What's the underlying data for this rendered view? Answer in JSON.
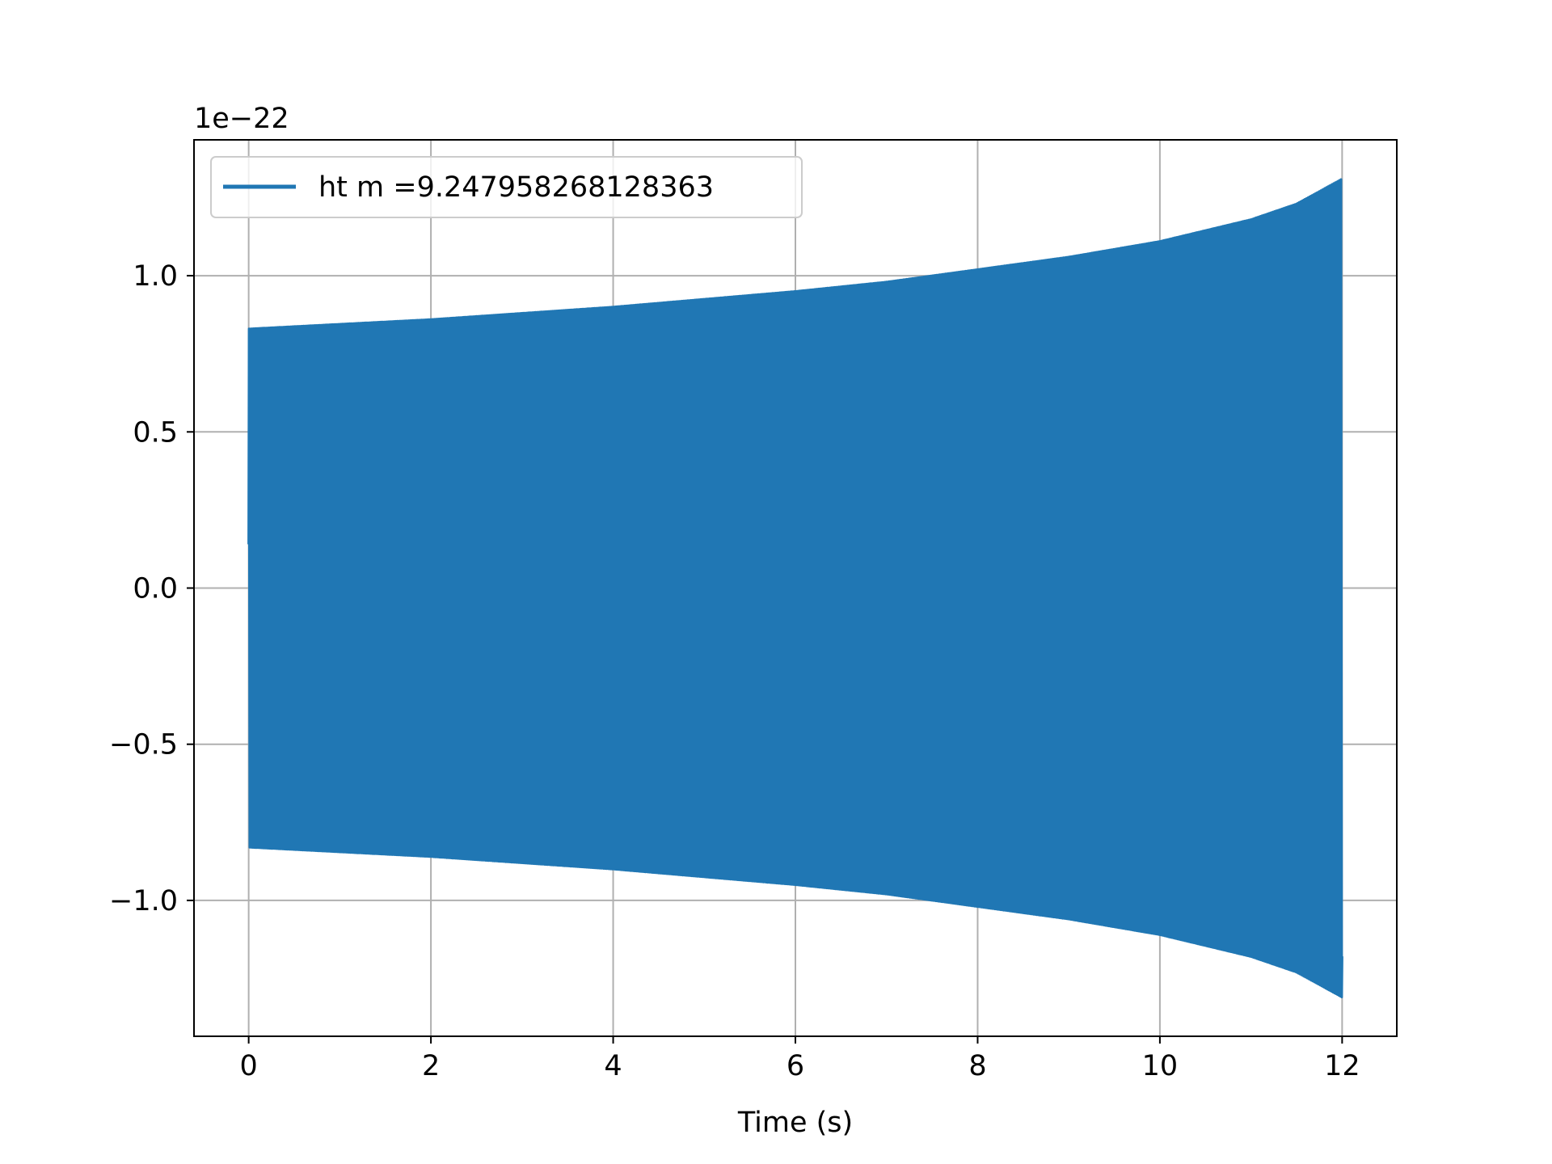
{
  "chart_data": {
    "type": "line",
    "title": "",
    "xlabel": "Time (s)",
    "ylabel": "",
    "y_scale_label": "1e−22",
    "xlim": [
      -0.6,
      12.6
    ],
    "ylim": [
      -1.435,
      1.435
    ],
    "grid": true,
    "legend_position": "upper left",
    "x_ticks": [
      {
        "value": 0,
        "label": "0"
      },
      {
        "value": 2,
        "label": "2"
      },
      {
        "value": 4,
        "label": "4"
      },
      {
        "value": 6,
        "label": "6"
      },
      {
        "value": 8,
        "label": "8"
      },
      {
        "value": 10,
        "label": "10"
      },
      {
        "value": 12,
        "label": "12"
      }
    ],
    "y_ticks": [
      {
        "value": -1.0,
        "label": "−1.0"
      },
      {
        "value": -0.5,
        "label": "−0.5"
      },
      {
        "value": 0.0,
        "label": "0.0"
      },
      {
        "value": 0.5,
        "label": "0.5"
      },
      {
        "value": 1.0,
        "label": "1.0"
      }
    ],
    "series": [
      {
        "name": "ht m =9.247958268128363",
        "color": "#2077b4",
        "kind": "oscillating signal (dense)",
        "x_start": 0.0,
        "x_end": 12.0,
        "y_start": 0.14,
        "envelope": {
          "t": [
            0,
            1,
            2,
            3,
            4,
            5,
            6,
            7,
            8,
            9,
            10,
            11,
            11.5,
            12
          ],
          "amplitude": [
            0.83,
            0.845,
            0.86,
            0.88,
            0.9,
            0.925,
            0.95,
            0.98,
            1.02,
            1.06,
            1.11,
            1.18,
            1.23,
            1.31
          ]
        }
      }
    ]
  }
}
